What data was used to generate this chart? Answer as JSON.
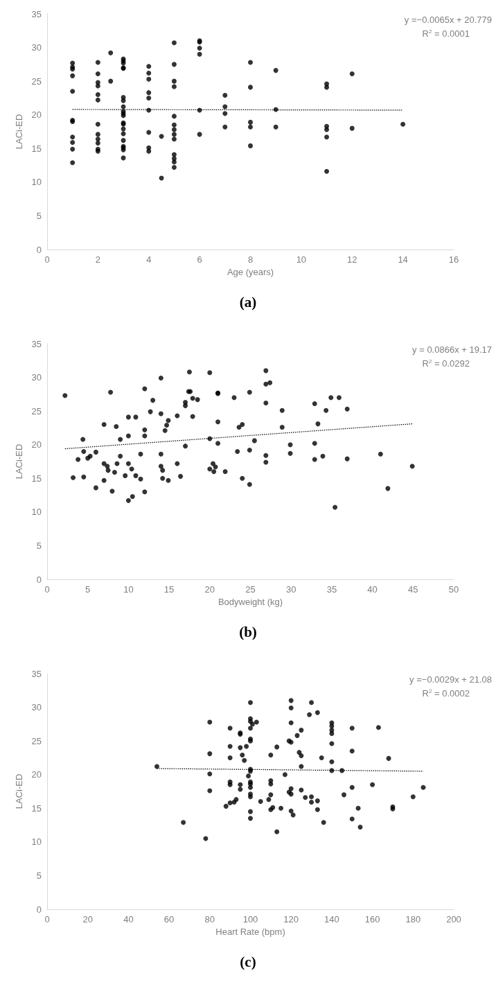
{
  "chart_data": [
    {
      "type": "scatter",
      "title": "(a)",
      "xlabel": "Age (years)",
      "ylabel": "LACi-ED",
      "xlim": [
        0,
        16
      ],
      "xticks": [
        0,
        2,
        4,
        6,
        8,
        10,
        12,
        14,
        16
      ],
      "ylim": [
        0,
        35
      ],
      "yticks": [
        0,
        5,
        10,
        15,
        20,
        25,
        30,
        35
      ],
      "grid": false,
      "marker": "circle",
      "annotations": [
        "y =−0.0065x + 20.779",
        "R$^{2}$ = 0.0001"
      ],
      "series": [
        {
          "color": "#000000",
          "x": [
            1,
            1,
            1,
            1,
            1,
            1,
            1,
            1,
            1,
            1,
            1,
            2,
            2,
            2,
            2,
            2,
            2,
            2,
            2,
            2,
            2,
            2,
            2,
            2.5,
            2.5,
            3,
            3,
            3,
            3,
            3,
            3,
            3,
            3,
            3,
            3,
            3,
            3,
            3,
            3,
            3,
            3,
            3,
            3,
            3,
            3,
            4,
            4,
            4,
            4,
            4,
            4,
            4,
            4,
            4,
            4.5,
            4.5,
            5,
            5,
            5,
            5,
            5,
            5,
            5,
            5,
            5,
            5,
            5,
            5,
            5,
            6,
            6,
            6,
            6,
            6,
            6,
            7,
            7,
            7,
            7,
            8,
            8,
            8,
            8,
            8,
            9,
            9,
            9,
            11,
            11,
            11,
            11,
            11,
            11,
            12,
            12,
            14
          ],
          "values": [
            27.7,
            27.1,
            26.8,
            25.8,
            23.5,
            19.2,
            19.0,
            16.7,
            15.9,
            14.9,
            12.9,
            27.8,
            26.1,
            24.8,
            24.3,
            23.0,
            22.2,
            18.6,
            17.1,
            16.4,
            15.8,
            14.9,
            14.6,
            29.2,
            25.0,
            28.3,
            28.0,
            27.7,
            27.0,
            26.9,
            22.6,
            22.1,
            21.2,
            20.5,
            20.2,
            19.9,
            18.8,
            18.6,
            17.9,
            17.2,
            16.2,
            15.3,
            15.1,
            14.8,
            13.6,
            27.2,
            26.2,
            25.3,
            23.3,
            22.5,
            20.7,
            17.4,
            15.1,
            14.6,
            16.8,
            10.6,
            30.7,
            27.5,
            25.0,
            24.2,
            19.8,
            18.5,
            17.8,
            17.1,
            16.4,
            14.1,
            13.5,
            13.0,
            12.2,
            31.0,
            30.8,
            29.9,
            29.0,
            20.7,
            17.1,
            22.9,
            21.2,
            20.2,
            18.2,
            27.8,
            24.1,
            18.9,
            18.2,
            15.4,
            26.6,
            20.8,
            18.2,
            24.6,
            24.1,
            18.3,
            17.8,
            16.7,
            11.6,
            26.1,
            18.0,
            18.6
          ]
        },
        {
          "type": "line",
          "color": "#000000",
          "marker": "none",
          "line_style": "dotted",
          "x": [
            1,
            14
          ],
          "values": [
            20.8,
            20.7
          ]
        }
      ]
    },
    {
      "type": "scatter",
      "title": "(b)",
      "xlabel": "Bodyweight (kg)",
      "ylabel": "LACi-ED",
      "xlim": [
        0,
        50
      ],
      "xticks": [
        0,
        5,
        10,
        15,
        20,
        25,
        30,
        35,
        40,
        45,
        50
      ],
      "ylim": [
        0,
        35
      ],
      "yticks": [
        0,
        5,
        10,
        15,
        20,
        25,
        30,
        35
      ],
      "grid": false,
      "marker": "circle",
      "annotations": [
        "y = 0.0866x + 19.17",
        "R$^{2}$ = 0.0292"
      ],
      "series": [
        {
          "color": "#000000",
          "x": [
            2.2,
            3.2,
            3.8,
            4.4,
            4.5,
            4.5,
            5.0,
            5.3,
            6.0,
            6.0,
            7.0,
            7.0,
            7.0,
            7.4,
            7.5,
            7.8,
            8.0,
            8.3,
            8.5,
            8.6,
            9.0,
            9.0,
            9.6,
            10.0,
            10.0,
            10.0,
            10.0,
            10.4,
            10.5,
            10.9,
            10.9,
            11.5,
            11.5,
            12.0,
            12.0,
            12.0,
            12.0,
            12.7,
            13.0,
            14.0,
            14.0,
            14.0,
            14.0,
            14.2,
            14.2,
            14.5,
            14.7,
            14.9,
            14.9,
            16.0,
            16.0,
            16.4,
            17.0,
            17.0,
            17.0,
            17.4,
            17.6,
            17.5,
            17.9,
            17.9,
            18.5,
            20.0,
            20.0,
            20.0,
            20.4,
            20.5,
            20.7,
            21.0,
            21.0,
            21.0,
            21.0,
            21.9,
            23.0,
            23.4,
            23.6,
            24.0,
            24.0,
            24.9,
            24.9,
            24.9,
            25.5,
            26.9,
            26.9,
            26.9,
            26.9,
            26.9,
            27.4,
            28.9,
            28.9,
            29.9,
            29.9,
            32.9,
            32.9,
            32.9,
            33.3,
            33.9,
            34.3,
            34.9,
            35.4,
            35.9,
            36.9,
            36.9,
            41.0,
            41.9,
            44.9
          ],
          "values": [
            27.3,
            15.1,
            17.8,
            20.8,
            19.0,
            15.2,
            18.0,
            18.3,
            18.9,
            13.6,
            23.0,
            17.2,
            14.7,
            16.8,
            16.2,
            27.8,
            13.1,
            15.9,
            22.7,
            17.2,
            20.8,
            18.3,
            15.4,
            11.7,
            21.3,
            24.1,
            17.2,
            16.4,
            12.3,
            24.1,
            15.4,
            18.6,
            14.9,
            28.3,
            22.2,
            21.3,
            13.0,
            24.9,
            26.6,
            29.9,
            24.6,
            18.6,
            16.8,
            16.2,
            15.0,
            22.1,
            22.9,
            23.6,
            14.7,
            24.3,
            17.2,
            15.3,
            26.3,
            25.8,
            19.8,
            27.9,
            27.9,
            30.8,
            26.9,
            24.2,
            26.7,
            30.7,
            20.9,
            16.4,
            17.2,
            16.0,
            16.7,
            27.7,
            27.6,
            23.4,
            20.2,
            16.0,
            27.0,
            19.0,
            22.6,
            23.0,
            15.0,
            27.8,
            19.2,
            14.1,
            20.6,
            31.0,
            29.0,
            26.2,
            18.4,
            17.4,
            29.2,
            25.1,
            22.6,
            20.0,
            18.7,
            26.1,
            20.2,
            17.8,
            23.1,
            18.3,
            25.1,
            27.0,
            10.7,
            27.0,
            25.3,
            17.9,
            18.6,
            13.5,
            16.8
          ]
        },
        {
          "type": "line",
          "color": "#000000",
          "marker": "none",
          "line_style": "dotted",
          "x": [
            2.2,
            44.9
          ],
          "values": [
            19.4,
            23.1
          ]
        }
      ]
    },
    {
      "type": "scatter",
      "title": "(c)",
      "xlabel": "Heart Rate (bpm)",
      "ylabel": "LACi-ED",
      "xlim": [
        0,
        200
      ],
      "xticks": [
        0,
        20,
        40,
        60,
        80,
        100,
        120,
        140,
        160,
        180,
        200
      ],
      "ylim": [
        0,
        35
      ],
      "yticks": [
        0,
        5,
        10,
        15,
        20,
        25,
        30,
        35
      ],
      "grid": false,
      "marker": "circle",
      "annotations": [
        "y =−0.0029x + 21.08",
        "R$^{2}$ = 0.0002"
      ],
      "series": [
        {
          "color": "#000000",
          "x": [
            54,
            67,
            78,
            80,
            80,
            80,
            80,
            88,
            90,
            90,
            90,
            90,
            90,
            90,
            92,
            93,
            95,
            95,
            95,
            95,
            95,
            96,
            97,
            98,
            99,
            100,
            100,
            100,
            101,
            100,
            100,
            100,
            100,
            100,
            100,
            100,
            100,
            100,
            100,
            100,
            100,
            103,
            105,
            109,
            110,
            110,
            110,
            110,
            110,
            111,
            113,
            113,
            115,
            117,
            119,
            120,
            120,
            120,
            120,
            119,
            120,
            120,
            120,
            121,
            123,
            124,
            125,
            125,
            125,
            125,
            127,
            129,
            130,
            130,
            130,
            133,
            133,
            133,
            135,
            136,
            140,
            140,
            140,
            140,
            140,
            140,
            140,
            145,
            146,
            150,
            150,
            150,
            150,
            153,
            154,
            160,
            163,
            168,
            170,
            170,
            180,
            185
          ],
          "values": [
            21.2,
            12.9,
            10.5,
            27.8,
            23.1,
            20.1,
            17.6,
            15.3,
            26.9,
            24.2,
            22.5,
            18.9,
            18.5,
            15.8,
            15.9,
            16.3,
            26.2,
            26.0,
            18.5,
            17.8,
            24.0,
            22.9,
            22.1,
            24.2,
            19.8,
            30.7,
            28.3,
            27.9,
            27.5,
            26.9,
            25.3,
            25.0,
            20.8,
            20.5,
            18.9,
            18.6,
            18.1,
            17.1,
            16.7,
            14.5,
            13.5,
            27.8,
            16.0,
            16.3,
            22.9,
            19.1,
            18.6,
            17.0,
            14.8,
            15.1,
            24.1,
            11.5,
            15.0,
            20.0,
            25.0,
            31.0,
            29.9,
            27.7,
            24.8,
            17.4,
            17.1,
            17.9,
            14.6,
            14.0,
            25.8,
            23.3,
            26.6,
            22.8,
            21.2,
            17.7,
            16.6,
            28.9,
            30.7,
            16.7,
            15.9,
            29.2,
            16.1,
            14.8,
            22.5,
            12.9,
            27.7,
            27.2,
            26.6,
            26.1,
            24.6,
            21.9,
            20.6,
            20.6,
            17.0,
            26.9,
            23.5,
            18.1,
            13.4,
            15.0,
            12.2,
            18.5,
            27.0,
            22.4,
            15.2,
            14.9,
            16.7,
            18.1
          ]
        },
        {
          "type": "line",
          "color": "#000000",
          "marker": "none",
          "line_style": "dotted",
          "x": [
            54,
            185
          ],
          "values": [
            20.9,
            20.5
          ]
        }
      ]
    }
  ]
}
